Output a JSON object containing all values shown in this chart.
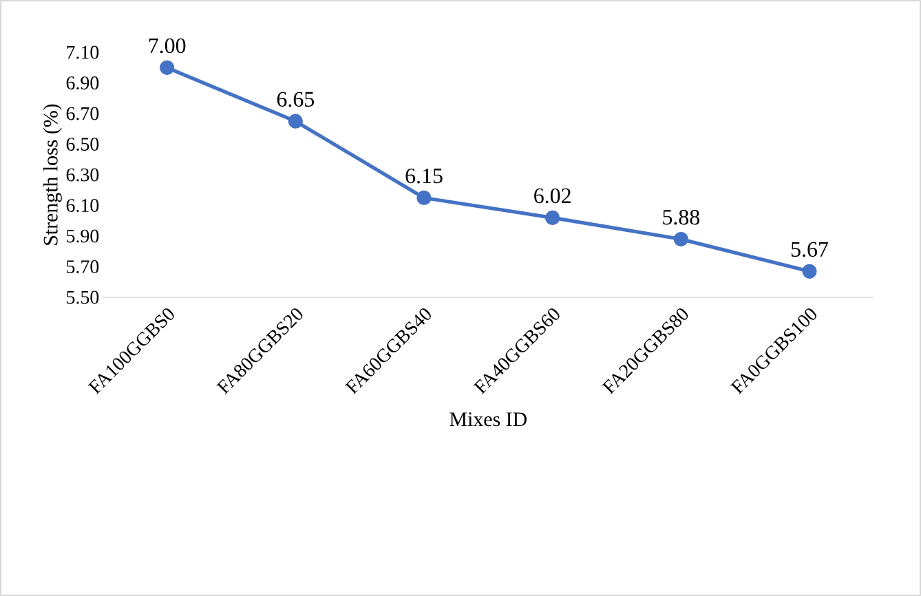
{
  "chart_data": {
    "type": "line",
    "xlabel": "Mixes ID",
    "ylabel": "Strength loss (%)",
    "categories": [
      "FA100GGBS0",
      "FA80GGBS20",
      "FA60GGBS40",
      "FA40GGBS60",
      "FA20GGBS80",
      "FA0GGBS100"
    ],
    "values": [
      7.0,
      6.65,
      6.15,
      6.02,
      5.88,
      5.67
    ],
    "value_labels": [
      "7.00",
      "6.65",
      "6.15",
      "6.02",
      "5.88",
      "5.67"
    ],
    "color": "#4472c4",
    "marker": "circle",
    "line_style": "solid",
    "ylim": [
      5.5,
      7.1
    ],
    "yticks": [
      {
        "value": 5.5,
        "label": "5.50"
      },
      {
        "value": 5.7,
        "label": "5.70"
      },
      {
        "value": 5.9,
        "label": "5.90"
      },
      {
        "value": 6.1,
        "label": "6.10"
      },
      {
        "value": 6.3,
        "label": "6.30"
      },
      {
        "value": 6.5,
        "label": "6.50"
      },
      {
        "value": 6.7,
        "label": "6.70"
      },
      {
        "value": 6.9,
        "label": "6.90"
      },
      {
        "value": 7.1,
        "label": "7.10"
      }
    ]
  }
}
